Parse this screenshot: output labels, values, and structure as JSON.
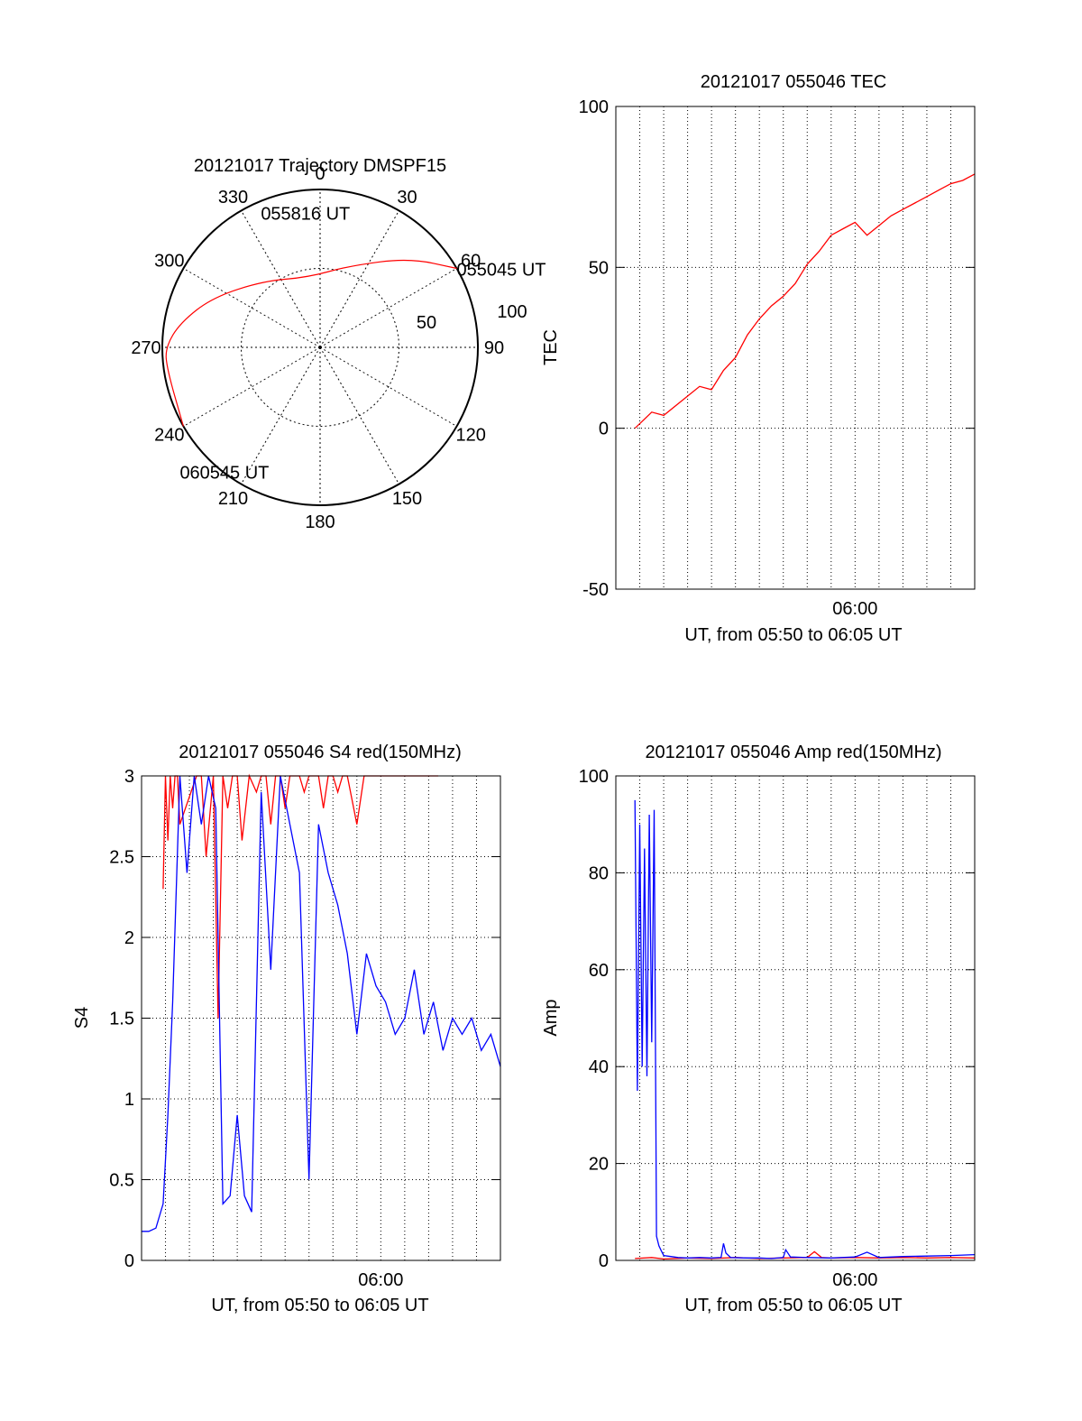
{
  "chart_data": [
    {
      "id": "polar",
      "type": "polar",
      "title": "20121017 Trajectory DMSPF15",
      "angle_labels": [
        "0",
        "30",
        "60",
        "90",
        "120",
        "150",
        "180",
        "210",
        "240",
        "270",
        "300",
        "330"
      ],
      "radial_labels": [
        "50",
        "100"
      ],
      "radial_max": 100,
      "trajectory_points": [
        [
          60,
          100
        ],
        [
          45,
          80
        ],
        [
          20,
          55
        ],
        [
          -10,
          45
        ],
        [
          -40,
          55
        ],
        [
          -65,
          75
        ],
        [
          -80,
          90
        ],
        [
          -90,
          98
        ],
        [
          -98,
          98
        ],
        [
          -120,
          100
        ]
      ],
      "point_labels": [
        {
          "text": "055045 UT",
          "az": 60,
          "r": 100
        },
        {
          "text": "055816 UT",
          "az": -10,
          "r": 45
        },
        {
          "text": "060545 UT",
          "az": -120,
          "r": 100
        }
      ],
      "color": "#ff0000"
    },
    {
      "id": "tec",
      "type": "line",
      "title": "20121017 055046 TEC",
      "xlabel": "UT, from 05:50 to 06:05 UT",
      "ylabel": "TEC",
      "x_tick_label": "06:00",
      "xlim": [
        0,
        15
      ],
      "ylim": [
        -50,
        100
      ],
      "yticks": [
        -50,
        0,
        50,
        100
      ],
      "x_gridlines": [
        1,
        2,
        3,
        4,
        5,
        6,
        7,
        8,
        9,
        10,
        11,
        12,
        13,
        14
      ],
      "y_gridlines": [
        0,
        50
      ],
      "series": [
        {
          "color": "#ff0000",
          "x": [
            0.8,
            1.5,
            2.0,
            3.0,
            3.5,
            4.0,
            4.5,
            5.0,
            5.5,
            6.0,
            6.5,
            7.0,
            7.5,
            8.0,
            8.5,
            9.0,
            9.5,
            10.0,
            10.5,
            11.0,
            11.5,
            12.0,
            12.5,
            13.0,
            13.5,
            14.0,
            14.5,
            15.0
          ],
          "y": [
            0,
            5,
            4,
            10,
            13,
            12,
            18,
            22,
            29,
            34,
            38,
            41,
            45,
            51,
            55,
            60,
            62,
            64,
            60,
            63,
            66,
            68,
            70,
            72,
            74,
            76,
            77,
            79
          ]
        }
      ]
    },
    {
      "id": "s4",
      "type": "line",
      "title": "20121017 055046 S4 red(150MHz)",
      "xlabel": "UT, from 05:50 to 06:05 UT",
      "ylabel": "S4",
      "x_tick_label": "06:00",
      "xlim": [
        0,
        15
      ],
      "ylim": [
        0,
        3
      ],
      "yticks": [
        0,
        0.5,
        1,
        1.5,
        2,
        2.5,
        3
      ],
      "x_gridlines": [
        1,
        2,
        3,
        4,
        5,
        6,
        7,
        8,
        9,
        10,
        11,
        12,
        13,
        14
      ],
      "y_gridlines": [
        0.5,
        1,
        1.5,
        2,
        2.5
      ],
      "series": [
        {
          "color": "#ff0000",
          "x": [
            0.9,
            1.0,
            1.1,
            1.2,
            1.3,
            1.4,
            1.5,
            1.6,
            2.3,
            2.5,
            2.7,
            3.0,
            3.2,
            3.4,
            3.6,
            3.8,
            4.0,
            4.2,
            4.5,
            4.8,
            5.0,
            5.2,
            5.4,
            5.6,
            5.8,
            6.0,
            6.2,
            6.4,
            6.6,
            6.8,
            7.0,
            7.2,
            7.4,
            7.6,
            7.8,
            8.0,
            8.2,
            8.4,
            8.6,
            9.0,
            9.3,
            9.6,
            10.2,
            10.5,
            11.2,
            12.4
          ],
          "y": [
            2.3,
            3,
            2.6,
            3,
            2.8,
            3,
            3,
            2.7,
            3,
            3,
            2.5,
            3,
            1.5,
            3,
            2.8,
            3,
            3,
            2.6,
            3,
            2.9,
            3,
            3,
            2.7,
            3,
            3,
            2.8,
            3,
            3,
            3,
            2.9,
            3,
            3,
            3,
            2.8,
            3,
            3,
            2.9,
            3,
            3,
            2.7,
            3,
            3,
            3,
            3,
            3,
            3
          ]
        },
        {
          "color": "#0000ff",
          "x": [
            0.0,
            0.3,
            0.6,
            0.9,
            1.1,
            1.3,
            1.6,
            1.9,
            2.2,
            2.5,
            2.8,
            3.1,
            3.4,
            3.7,
            4.0,
            4.3,
            4.6,
            5.0,
            5.4,
            5.8,
            6.2,
            6.6,
            7.0,
            7.4,
            7.8,
            8.2,
            8.6,
            9.0,
            9.4,
            9.8,
            10.2,
            10.6,
            11.0,
            11.4,
            11.8,
            12.2,
            12.6,
            13.0,
            13.4,
            13.8,
            14.2,
            14.6,
            15.0
          ],
          "y": [
            0.18,
            0.18,
            0.2,
            0.35,
            0.9,
            1.6,
            3.0,
            2.4,
            3.0,
            2.7,
            3.0,
            2.8,
            0.35,
            0.4,
            0.9,
            0.4,
            0.3,
            2.9,
            1.8,
            3.0,
            2.7,
            2.4,
            0.5,
            2.7,
            2.4,
            2.2,
            1.9,
            1.4,
            1.9,
            1.7,
            1.6,
            1.4,
            1.5,
            1.8,
            1.4,
            1.6,
            1.3,
            1.5,
            1.4,
            1.5,
            1.3,
            1.4,
            1.2
          ]
        }
      ]
    },
    {
      "id": "amp",
      "type": "line",
      "title": "20121017 055046 Amp red(150MHz)",
      "xlabel": "UT, from 05:50 to 06:05 UT",
      "ylabel": "Amp",
      "x_tick_label": "06:00",
      "xlim": [
        0,
        15
      ],
      "ylim": [
        0,
        100
      ],
      "yticks": [
        0,
        20,
        40,
        60,
        80,
        100
      ],
      "x_gridlines": [
        1,
        2,
        3,
        4,
        5,
        6,
        7,
        8,
        9,
        10,
        11,
        12,
        13,
        14
      ],
      "y_gridlines": [
        20,
        40,
        60,
        80
      ],
      "series": [
        {
          "color": "#ff0000",
          "x": [
            0.8,
            1.5,
            2.0,
            3.0,
            4.0,
            5.0,
            6.0,
            7.0,
            8.0,
            8.3,
            8.6,
            9.0,
            10.0,
            11.0,
            12.0,
            13.0,
            14.0,
            15.0
          ],
          "y": [
            0.4,
            0.6,
            0.3,
            0.5,
            0.4,
            0.6,
            0.4,
            0.5,
            0.6,
            1.8,
            0.6,
            0.5,
            0.6,
            0.5,
            0.6,
            0.5,
            0.6,
            0.5
          ]
        },
        {
          "color": "#0000ff",
          "x": [
            0.8,
            0.9,
            1.0,
            1.1,
            1.2,
            1.3,
            1.4,
            1.5,
            1.6,
            1.7,
            1.8,
            1.9,
            2.0,
            2.3,
            2.6,
            3.0,
            3.5,
            4.0,
            4.4,
            4.5,
            4.6,
            4.8,
            5.5,
            6.0,
            6.5,
            7.0,
            7.1,
            7.3,
            8.0,
            9.0,
            10.0,
            10.5,
            11.0,
            12.0,
            13.0,
            14.0,
            15.0
          ],
          "y": [
            95,
            35,
            90,
            40,
            85,
            38,
            92,
            45,
            93,
            5,
            3,
            2,
            1,
            0.8,
            0.6,
            0.5,
            0.6,
            0.5,
            0.6,
            3.5,
            1.5,
            0.6,
            0.5,
            0.5,
            0.4,
            0.6,
            2.2,
            0.7,
            0.6,
            0.5,
            0.7,
            1.7,
            0.6,
            0.8,
            0.9,
            1.0,
            1.2
          ]
        }
      ]
    }
  ]
}
